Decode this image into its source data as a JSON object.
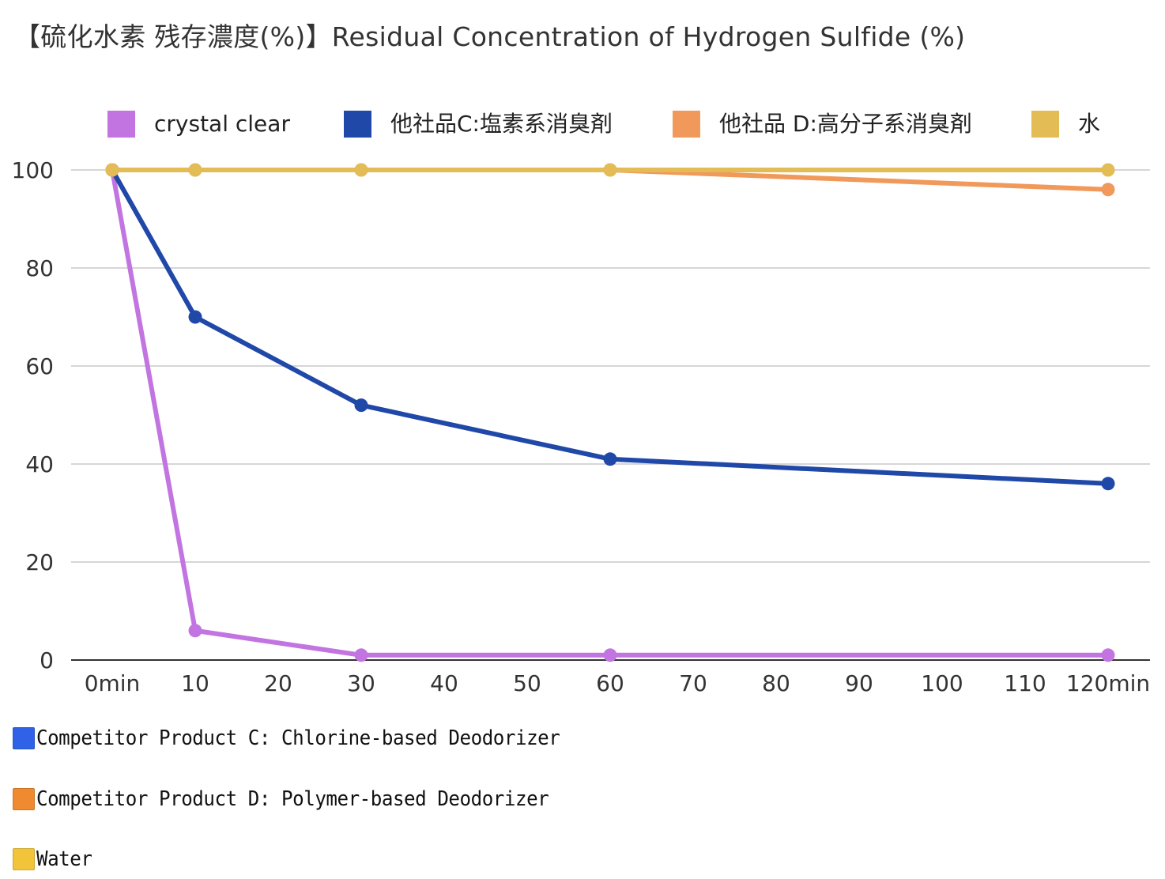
{
  "chart_data": {
    "type": "line",
    "title": "【硫化水素 残存濃度(%)】Residual Concentration of Hydrogen Sulfide (%)",
    "xlabel": "",
    "ylabel": "",
    "x": [
      0,
      10,
      30,
      60,
      120
    ],
    "x_ticks": [
      0,
      10,
      20,
      30,
      40,
      50,
      60,
      70,
      80,
      90,
      100,
      110,
      120
    ],
    "x_tick_labels": [
      "0min",
      "10",
      "20",
      "30",
      "40",
      "50",
      "60",
      "70",
      "80",
      "90",
      "100",
      "110",
      "120min"
    ],
    "xlim": [
      0,
      120
    ],
    "ylim": [
      0,
      100
    ],
    "y_ticks": [
      0,
      20,
      40,
      60,
      80,
      100
    ],
    "grid": true,
    "legend_position": "top",
    "series": [
      {
        "name": "crystal clear",
        "color": "#c275e0",
        "values": [
          100,
          6,
          1,
          1,
          1
        ]
      },
      {
        "name": "他社品C:塩素系消臭剤",
        "color": "#1f48a8",
        "values": [
          100,
          70,
          52,
          41,
          36
        ]
      },
      {
        "name": "他社品 D:高分子系消臭剤",
        "color": "#f0995a",
        "values": [
          100,
          100,
          100,
          100,
          96
        ]
      },
      {
        "name": "水",
        "color": "#e3bc55",
        "values": [
          100,
          100,
          100,
          100,
          100
        ]
      }
    ]
  },
  "notes": [
    {
      "text": "Competitor Product C: Chlorine-based Deodorizer",
      "color": "#2f62e6"
    },
    {
      "text": "Competitor Product D: Polymer-based Deodorizer",
      "color": "#f08a30"
    },
    {
      "text": "Water",
      "color": "#f1c43a"
    }
  ]
}
